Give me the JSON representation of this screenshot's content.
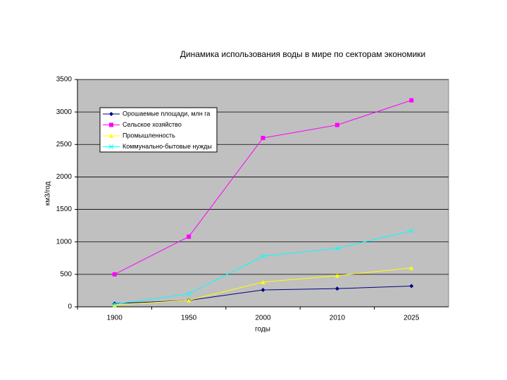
{
  "chart_data": {
    "type": "line",
    "title": "Динамика использования воды в мире по секторам экономики",
    "y_label": "км3/год",
    "x_label": "годы",
    "categories": [
      "1900",
      "1950",
      "2000",
      "2010",
      "2025"
    ],
    "series": [
      {
        "name": "Орошаемые площади, млн га",
        "color": "#000080",
        "marker": "diamond",
        "values": [
          50,
          100,
          260,
          280,
          320
        ]
      },
      {
        "name": "Сельское хозяйство",
        "color": "#ff00ff",
        "marker": "square",
        "values": [
          500,
          1080,
          2600,
          2800,
          3180
        ]
      },
      {
        "name": "Промышленность",
        "color": "#ffff00",
        "marker": "triangle",
        "values": [
          30,
          100,
          380,
          480,
          600
        ]
      },
      {
        "name": "Коммунально-бытовые нужды",
        "color": "#00ffff",
        "marker": "x",
        "values": [
          40,
          200,
          780,
          900,
          1170
        ]
      }
    ],
    "ylim": [
      0,
      3500
    ],
    "yticks": [
      0,
      500,
      1000,
      1500,
      2000,
      2500,
      3000,
      3500
    ],
    "grid": true,
    "legend": "upper-left",
    "plot_background": "#c0c0c0"
  }
}
